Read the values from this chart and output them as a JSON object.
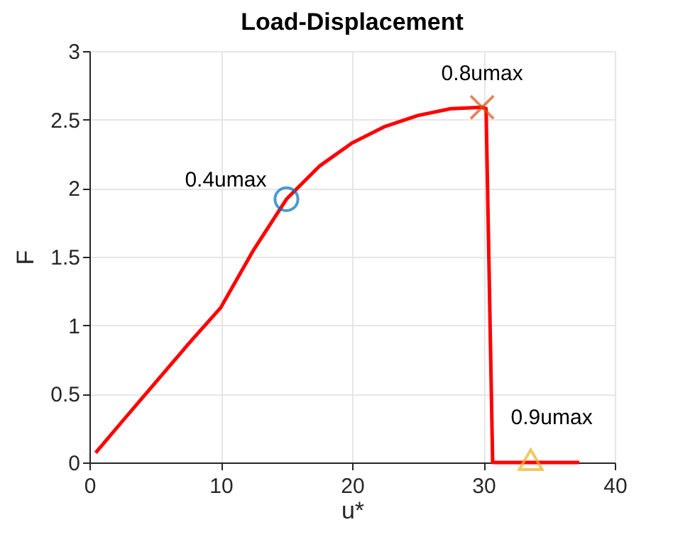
{
  "chart_data": {
    "type": "line",
    "title": "Load-Displacement",
    "xlabel": "u*",
    "ylabel": "F",
    "xlim": [
      0,
      40
    ],
    "xticks": [
      0,
      10,
      20,
      30,
      40
    ],
    "ylim": [
      0,
      3
    ],
    "yticks": [
      0,
      0.5,
      1,
      1.5,
      2,
      2.5,
      3
    ],
    "grid": true,
    "series": [
      {
        "color": "#ff0000",
        "marker": "none",
        "x": [
          0.47,
          2.5,
          5,
          7.5,
          10,
          12.5,
          15,
          17.5,
          20,
          22.5,
          25,
          27.5,
          29.9,
          30.2,
          30.7,
          37.3
        ],
        "values": [
          0.07,
          0.3,
          0.58,
          0.86,
          1.13,
          1.55,
          1.92,
          2.16,
          2.33,
          2.45,
          2.53,
          2.58,
          2.59,
          2.58,
          0,
          0
        ]
      },
      {
        "type": "scatter",
        "color": "#0072bd",
        "marker": "circle",
        "x": [
          15
        ],
        "values": [
          1.92
        ]
      },
      {
        "type": "scatter",
        "color": "#d95319",
        "marker": "cross",
        "x": [
          29.9
        ],
        "values": [
          2.59
        ]
      },
      {
        "type": "scatter",
        "color": "#edb120",
        "marker": "triangle",
        "x": [
          33.6
        ],
        "values": [
          0.02
        ]
      }
    ],
    "annotations": [
      {
        "text": "0.4umax",
        "x": 15,
        "y": 1.92
      },
      {
        "text": "0.8umax",
        "x": 29.9,
        "y": 2.59
      },
      {
        "text": "0.9umax",
        "x": 33.6,
        "y": 0.02
      }
    ]
  }
}
